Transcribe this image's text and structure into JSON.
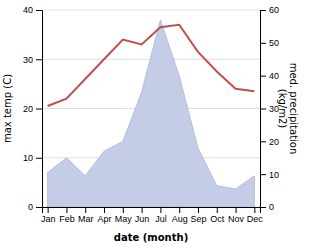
{
  "chart_data": {
    "type": "line",
    "categories": [
      "Jan",
      "Feb",
      "Mar",
      "Apr",
      "May",
      "Jun",
      "Jul",
      "Aug",
      "Sep",
      "Oct",
      "Nov",
      "Dec"
    ],
    "x_label": "date (month)",
    "y_label": "max temp (C)",
    "y2_label": "med. precipitation\n(kg/m2)",
    "series": [
      {
        "type": "area",
        "axis": "y2",
        "color": "#c5cce8",
        "values": [
          10.5,
          15.0,
          9.5,
          17.0,
          20.0,
          35.0,
          57.0,
          40.0,
          18.0,
          6.5,
          5.5,
          9.5
        ]
      },
      {
        "type": "line",
        "color": "#c0504d",
        "values": [
          20.5,
          22.0,
          26.0,
          30.0,
          34.0,
          33.0,
          36.5,
          37.0,
          31.5,
          27.5,
          24.0,
          23.5
        ]
      }
    ],
    "ylim": [
      0,
      40
    ],
    "yticks": [
      0,
      10,
      20,
      30,
      40
    ],
    "y2lim": [
      0,
      60
    ],
    "y2ticks": [
      0,
      10,
      20,
      30,
      40,
      50,
      60
    ],
    "grid": true
  }
}
